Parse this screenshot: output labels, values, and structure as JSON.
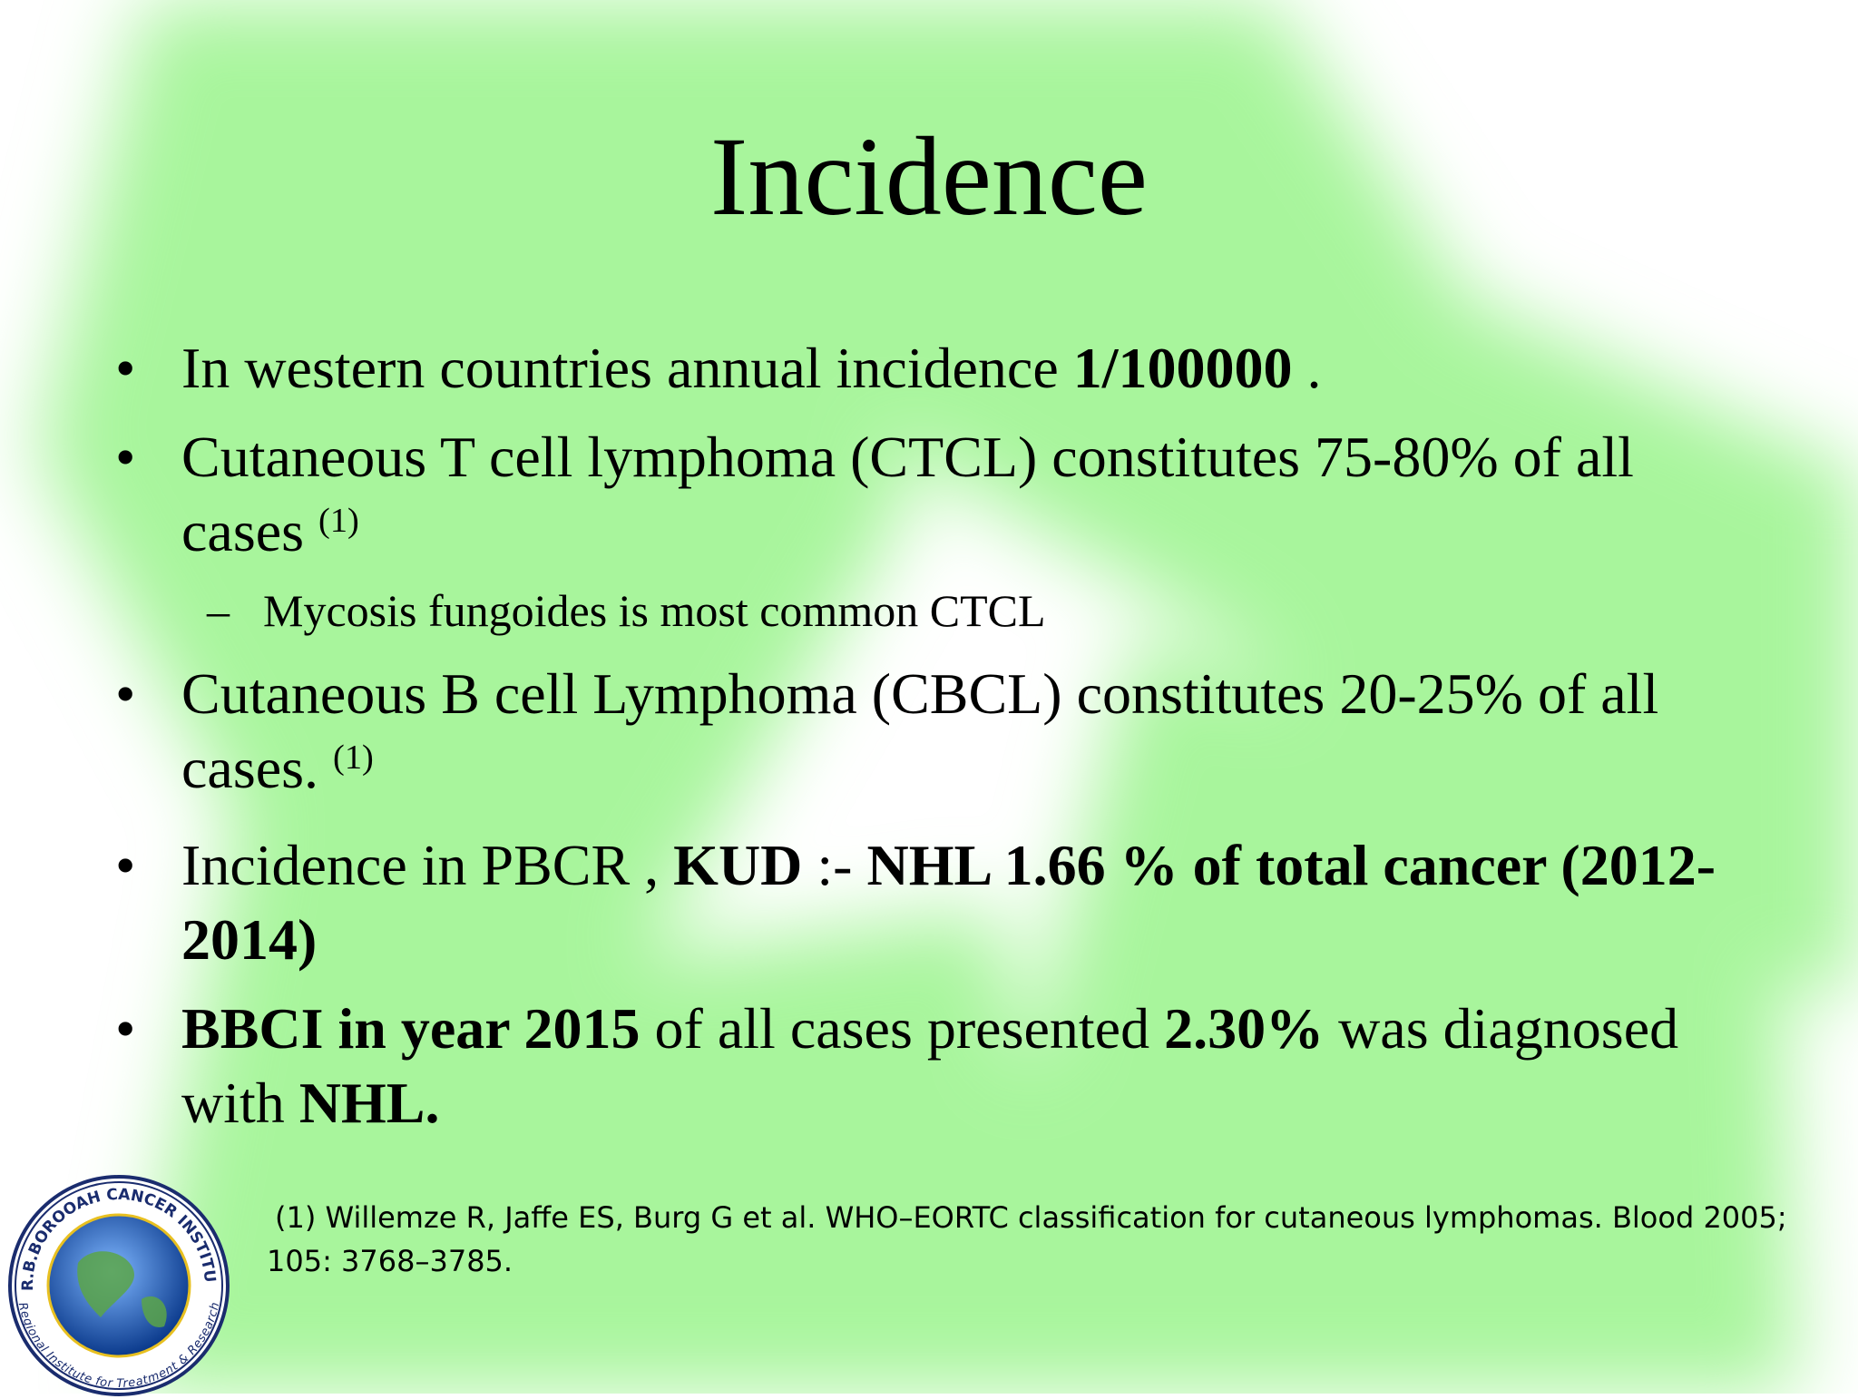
{
  "title": "Incidence",
  "bullets": [
    {
      "runs": [
        {
          "text": "In western countries annual incidence  "
        },
        {
          "text": "1/100000",
          "bold": true
        },
        {
          "text": " ."
        }
      ]
    },
    {
      "runs": [
        {
          "text": "Cutaneous T cell lymphoma (CTCL) constitutes 75-80% of all cases "
        },
        {
          "text": "(1)",
          "sup": true
        }
      ],
      "sub_items": [
        {
          "runs": [
            {
              "text": "Mycosis fungoides  is most common CTCL"
            }
          ]
        }
      ]
    },
    {
      "runs": [
        {
          "text": "Cutaneous B cell Lymphoma (CBCL) constitutes 20-25% of all cases. "
        },
        {
          "text": "(1)",
          "sup": true
        }
      ]
    },
    {
      "runs": [
        {
          "text": "Incidence in PBCR , "
        },
        {
          "text": "KUD",
          "bold": true
        },
        {
          "text": " :- "
        },
        {
          "text": "NHL 1.66 % of total cancer (2012-2014)",
          "bold": true
        }
      ]
    },
    {
      "runs": [
        {
          "text": " BBCI in year 2015",
          "bold": true
        },
        {
          "text": " of all cases presented "
        },
        {
          "text": "2.30%",
          "bold": true
        },
        {
          "text": " was diagnosed with "
        },
        {
          "text": "NHL.",
          "bold": true
        }
      ]
    }
  ],
  "footnote": "(1) Willemze R, Jaffe ES, Burg G et al. WHO–EORTC classification for cutaneous lymphomas. Blood 2005; 105: 3768–3785.",
  "logo": {
    "top_text": "DR.B.BOROOAH CANCER INSTITUTE",
    "bottom_text": "Regional Institute for Treatment & Research"
  }
}
